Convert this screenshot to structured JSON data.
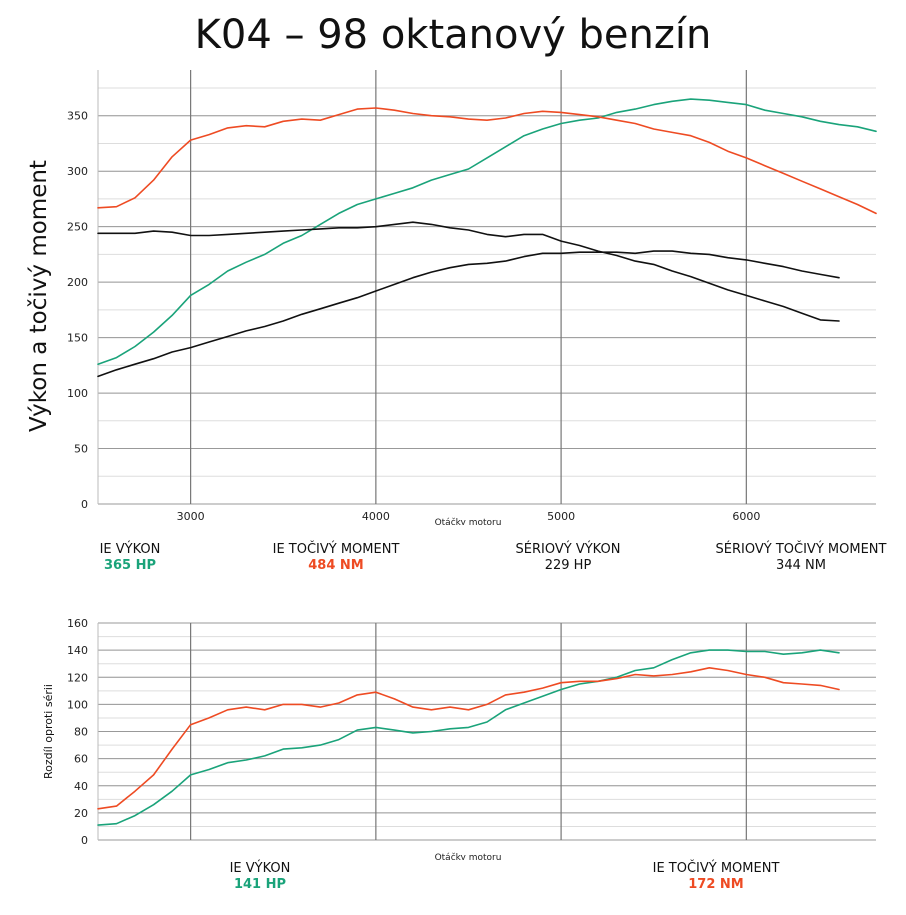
{
  "title": "K04 – 98 oktanový benzín",
  "colors": {
    "green": "#1aa37a",
    "orange": "#ee4b23",
    "black": "#111111",
    "grid_major": "#999999",
    "grid_minor": "#dddddd"
  },
  "chart_data": [
    {
      "type": "line",
      "ylabel": "Výkon a točivý moment",
      "xlabel": "Otáčky motoru",
      "xlim": [
        2500,
        6700
      ],
      "ylim": [
        0,
        375
      ],
      "xticks": [
        "3000",
        "4000",
        "5000",
        "6000"
      ],
      "yticks": [
        "0",
        "50",
        "100",
        "150",
        "200",
        "250",
        "300",
        "350"
      ],
      "grid": true,
      "series": [
        {
          "name": "IE VÝKON",
          "color": "#1aa37a",
          "x": [
            2500,
            2600,
            2700,
            2800,
            2900,
            3000,
            3100,
            3200,
            3300,
            3400,
            3500,
            3600,
            3700,
            3800,
            3900,
            4000,
            4100,
            4200,
            4300,
            4400,
            4500,
            4600,
            4700,
            4800,
            4900,
            5000,
            5100,
            5200,
            5300,
            5400,
            5500,
            5600,
            5700,
            5800,
            5900,
            6000,
            6100,
            6200,
            6300,
            6400,
            6500,
            6600,
            6700
          ],
          "values": [
            126,
            132,
            142,
            155,
            170,
            188,
            198,
            210,
            218,
            225,
            235,
            242,
            252,
            262,
            270,
            275,
            280,
            285,
            292,
            297,
            302,
            312,
            322,
            332,
            338,
            343,
            346,
            348,
            353,
            356,
            360,
            363,
            365,
            364,
            362,
            360,
            355,
            352,
            349,
            345,
            342,
            340,
            336
          ]
        },
        {
          "name": "IE TOČIVÝ MOMENT",
          "color": "#ee4b23",
          "x": [
            2500,
            2600,
            2700,
            2800,
            2900,
            3000,
            3100,
            3200,
            3300,
            3400,
            3500,
            3600,
            3700,
            3800,
            3900,
            4000,
            4100,
            4200,
            4300,
            4400,
            4500,
            4600,
            4700,
            4800,
            4900,
            5000,
            5100,
            5200,
            5300,
            5400,
            5500,
            5600,
            5700,
            5800,
            5900,
            6000,
            6100,
            6200,
            6300,
            6400,
            6500,
            6600,
            6700
          ],
          "values": [
            267,
            268,
            276,
            292,
            313,
            328,
            333,
            339,
            341,
            340,
            345,
            347,
            346,
            351,
            356,
            357,
            355,
            352,
            350,
            349,
            347,
            346,
            348,
            352,
            354,
            353,
            351,
            349,
            346,
            343,
            338,
            335,
            332,
            326,
            318,
            312,
            305,
            298,
            291,
            284,
            277,
            270,
            262
          ]
        },
        {
          "name": "SÉRIOVÝ VÝKON",
          "color": "#111111",
          "x": [
            2500,
            2600,
            2700,
            2800,
            2900,
            3000,
            3100,
            3200,
            3300,
            3400,
            3500,
            3600,
            3700,
            3800,
            3900,
            4000,
            4100,
            4200,
            4300,
            4400,
            4500,
            4600,
            4700,
            4800,
            4900,
            5000,
            5100,
            5200,
            5300,
            5400,
            5500,
            5600,
            5700,
            5800,
            5900,
            6000,
            6100,
            6200,
            6300,
            6400,
            6500
          ],
          "values": [
            115,
            121,
            126,
            131,
            137,
            141,
            146,
            151,
            156,
            160,
            165,
            171,
            176,
            181,
            186,
            192,
            198,
            204,
            209,
            213,
            216,
            217,
            219,
            223,
            226,
            226,
            227,
            227,
            227,
            226,
            228,
            228,
            226,
            225,
            222,
            220,
            217,
            214,
            210,
            207,
            204
          ]
        },
        {
          "name": "SÉRIOVÝ TOČIVÝ MOMENT",
          "color": "#111111",
          "x": [
            2500,
            2600,
            2700,
            2800,
            2900,
            3000,
            3100,
            3200,
            3300,
            3400,
            3500,
            3600,
            3700,
            3800,
            3900,
            4000,
            4100,
            4200,
            4300,
            4400,
            4500,
            4600,
            4700,
            4800,
            4900,
            5000,
            5100,
            5200,
            5300,
            5400,
            5500,
            5600,
            5700,
            5800,
            5900,
            6000,
            6100,
            6200,
            6300,
            6400,
            6500
          ],
          "values": [
            244,
            244,
            244,
            246,
            245,
            242,
            242,
            243,
            244,
            245,
            246,
            247,
            248,
            249,
            249,
            250,
            252,
            254,
            252,
            249,
            247,
            243,
            241,
            243,
            243,
            237,
            233,
            228,
            224,
            219,
            216,
            210,
            205,
            199,
            193,
            188,
            183,
            178,
            172,
            166,
            165
          ]
        }
      ],
      "legend": [
        {
          "label": "IE VÝKON",
          "value": "365 HP"
        },
        {
          "label": "IE TOČIVÝ MOMENT",
          "value": "484 NM"
        },
        {
          "label": "SÉRIOVÝ VÝKON",
          "value": "229 HP"
        },
        {
          "label": "SÉRIOVÝ TOČIVÝ MOMENT",
          "value": "344 NM"
        }
      ]
    },
    {
      "type": "line",
      "ylabel": "Rozdíl oproti sérii",
      "xlabel": "Otáčky motoru",
      "xlim": [
        2500,
        6700
      ],
      "ylim": [
        0,
        160
      ],
      "xticks": [],
      "yticks": [
        "0",
        "20",
        "40",
        "60",
        "80",
        "100",
        "120",
        "140",
        "160"
      ],
      "grid": true,
      "series": [
        {
          "name": "IE VÝKON",
          "color": "#1aa37a",
          "x": [
            2500,
            2600,
            2700,
            2800,
            2900,
            3000,
            3100,
            3200,
            3300,
            3400,
            3500,
            3600,
            3700,
            3800,
            3900,
            4000,
            4100,
            4200,
            4300,
            4400,
            4500,
            4600,
            4700,
            4800,
            4900,
            5000,
            5100,
            5200,
            5300,
            5400,
            5500,
            5600,
            5700,
            5800,
            5900,
            6000,
            6100,
            6200,
            6300,
            6400,
            6500
          ],
          "values": [
            11,
            12,
            18,
            26,
            36,
            48,
            52,
            57,
            59,
            62,
            67,
            68,
            70,
            74,
            81,
            83,
            81,
            79,
            80,
            82,
            83,
            87,
            96,
            101,
            106,
            111,
            115,
            117,
            120,
            125,
            127,
            133,
            138,
            140,
            140,
            139,
            139,
            137,
            138,
            140,
            138
          ]
        },
        {
          "name": "IE TOČIVÝ MOMENT",
          "color": "#ee4b23",
          "x": [
            2500,
            2600,
            2700,
            2800,
            2900,
            3000,
            3100,
            3200,
            3300,
            3400,
            3500,
            3600,
            3700,
            3800,
            3900,
            4000,
            4100,
            4200,
            4300,
            4400,
            4500,
            4600,
            4700,
            4800,
            4900,
            5000,
            5100,
            5200,
            5300,
            5400,
            5500,
            5600,
            5700,
            5800,
            5900,
            6000,
            6100,
            6200,
            6300,
            6400,
            6500
          ],
          "values": [
            23,
            25,
            36,
            48,
            67,
            85,
            90,
            96,
            98,
            96,
            100,
            100,
            98,
            101,
            107,
            109,
            104,
            98,
            96,
            98,
            96,
            100,
            107,
            109,
            112,
            116,
            117,
            117,
            119,
            122,
            121,
            122,
            124,
            127,
            125,
            122,
            120,
            116,
            115,
            114,
            111
          ]
        }
      ],
      "legend": [
        {
          "label": "IE VÝKON",
          "value": "141 HP"
        },
        {
          "label": "IE TOČIVÝ MOMENT",
          "value": "172 NM"
        }
      ]
    }
  ]
}
